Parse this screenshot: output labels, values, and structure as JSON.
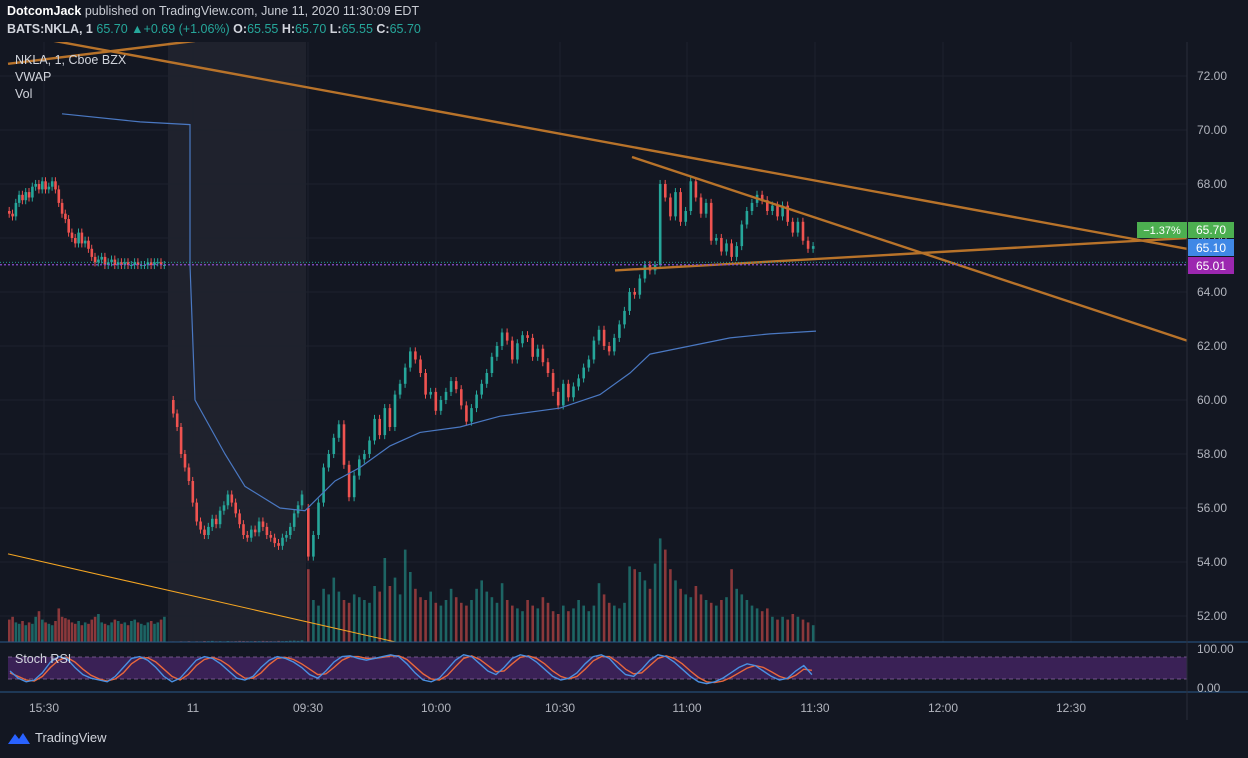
{
  "header": {
    "author": "DotcomJack",
    "published_text": "published on TradingView.com, June 11, 2020 11:30:09 EDT",
    "symbol": "BATS:NKLA, 1",
    "last": "65.70",
    "change": "+0.69 (+1.06%)",
    "o_label": "O:",
    "o": "65.55",
    "h_label": "H:",
    "h": "65.70",
    "l_label": "L:",
    "l": "65.55",
    "c_label": "C:",
    "c": "65.70"
  },
  "legend": {
    "series": "NKLA, 1, Cboe BZX",
    "vwap": "VWAP",
    "vol": "Vol",
    "stoch": "Stoch RSI"
  },
  "colors": {
    "background": "#131722",
    "up": "#26a69a",
    "down": "#ef5350",
    "vwap": "#4a78c2",
    "trendline": "#b8732a",
    "stoch_k": "#4a90e2",
    "stoch_d": "#e8673c",
    "stoch_band": "#5b2a82"
  },
  "price_tags": {
    "percent": "−1.37%",
    "price_green": "65.70",
    "price_blue": "65.10",
    "price_purple": "65.01"
  },
  "footer": {
    "brand": "TradingView"
  },
  "chart_data": {
    "type": "candlestick",
    "title": "NKLA, 1, Cboe BZX",
    "y_ticks": [
      "72.00",
      "70.00",
      "68.00",
      "66.00",
      "64.00",
      "62.00",
      "60.00",
      "58.00",
      "56.00",
      "54.00",
      "52.00"
    ],
    "ylim": [
      51.0,
      73.5
    ],
    "x_ticks": [
      "15:30",
      "11",
      "09:30",
      "10:00",
      "10:30",
      "11:00",
      "11:30",
      "12:00",
      "12:30"
    ],
    "stoch_ticks": [
      "100.00",
      "0.00"
    ],
    "horizontal_levels": {
      "purple_line": 65.01,
      "green_dotted_line": 65.7
    },
    "segments": [
      {
        "name": "prev_close_session",
        "start": 62,
        "n": 48,
        "o": [
          67.0,
          66.9,
          66.8,
          67.3,
          67.6,
          67.4,
          67.7,
          67.5,
          67.9,
          68.0,
          67.8,
          68.1,
          67.8,
          67.9,
          68.1,
          67.8,
          67.3,
          66.9,
          66.7,
          66.2,
          66.0,
          65.8,
          66.2,
          65.8,
          65.9,
          65.6,
          65.3,
          65.1,
          65.2,
          65.3,
          65.0,
          65.1,
          65.2,
          65.0,
          65.1,
          65.0,
          65.1,
          65.0,
          65.0,
          65.1,
          65.0,
          65.0,
          65.0,
          65.1,
          65.0,
          65.1,
          65.1,
          65.0
        ],
        "c": [
          66.9,
          66.8,
          67.3,
          67.6,
          67.4,
          67.7,
          67.5,
          67.9,
          68.0,
          67.8,
          68.1,
          67.8,
          67.9,
          68.1,
          67.8,
          67.3,
          66.9,
          66.7,
          66.2,
          66.0,
          65.8,
          66.2,
          65.8,
          65.9,
          65.6,
          65.3,
          65.1,
          65.2,
          65.3,
          65.0,
          65.1,
          65.2,
          65.0,
          65.1,
          65.0,
          65.1,
          65.0,
          65.0,
          65.1,
          65.0,
          65.0,
          65.0,
          65.1,
          65.0,
          65.1,
          65.1,
          65.0,
          65.0
        ],
        "v": [
          800,
          900,
          700,
          650,
          750,
          600,
          700,
          650,
          900,
          1100,
          800,
          700,
          650,
          600,
          750,
          1200,
          900,
          850,
          800,
          700,
          650,
          750,
          600,
          700,
          650,
          800,
          900,
          1000,
          700,
          650,
          600,
          700,
          800,
          750,
          650,
          700,
          600,
          750,
          800,
          700,
          650,
          600,
          700,
          750,
          650,
          700,
          800,
          900
        ]
      },
      {
        "name": "premarket",
        "start": 22,
        "n": 34,
        "o": [
          60.0,
          59.5,
          59.0,
          58.0,
          57.5,
          57.0,
          56.2,
          55.5,
          55.2,
          55.0,
          55.3,
          55.6,
          55.4,
          55.9,
          56.1,
          56.5,
          56.2,
          55.8,
          55.4,
          55.0,
          54.9,
          55.2,
          55.1,
          55.5,
          55.3,
          55.0,
          54.9,
          54.7,
          54.6,
          54.9,
          55.0,
          55.3,
          55.8,
          56.1
        ],
        "c": [
          59.5,
          59.0,
          58.0,
          57.5,
          57.0,
          56.2,
          55.5,
          55.2,
          55.0,
          55.3,
          55.6,
          55.4,
          55.9,
          56.1,
          56.5,
          56.2,
          55.8,
          55.4,
          55.0,
          54.9,
          55.2,
          55.1,
          55.5,
          55.3,
          55.0,
          54.9,
          54.7,
          54.6,
          54.9,
          55.0,
          55.3,
          55.8,
          56.1,
          56.5
        ],
        "v": [
          20,
          15,
          25,
          20,
          30,
          15,
          25,
          20,
          35,
          30,
          40,
          25,
          30,
          20,
          35,
          25,
          30,
          40,
          35,
          30,
          25,
          35,
          30,
          40,
          35,
          30,
          25,
          40,
          30,
          35,
          45,
          50,
          40,
          60
        ]
      },
      {
        "name": "regular_session",
        "start": 56,
        "n": 100,
        "o": [
          56.0,
          54.2,
          55.0,
          56.2,
          57.5,
          58.0,
          58.6,
          59.1,
          57.6,
          56.4,
          57.2,
          57.8,
          58.0,
          58.5,
          59.3,
          58.7,
          59.7,
          59.0,
          60.2,
          60.6,
          61.2,
          61.8,
          61.5,
          61.0,
          60.2,
          60.3,
          59.6,
          60.0,
          60.3,
          60.7,
          60.4,
          59.8,
          59.2,
          59.7,
          60.2,
          60.6,
          61.0,
          61.6,
          62.0,
          62.5,
          62.2,
          61.5,
          62.1,
          62.4,
          62.3,
          61.6,
          61.9,
          61.4,
          61.0,
          60.3,
          59.8,
          60.6,
          60.1,
          60.5,
          60.8,
          61.2,
          61.5,
          62.2,
          62.6,
          62.0,
          61.8,
          62.3,
          62.8,
          63.3,
          64.0,
          63.9,
          64.5,
          65.0,
          64.8,
          65.0,
          68.0,
          67.5,
          66.8,
          67.7,
          66.6,
          67.0,
          68.1,
          67.5,
          66.9,
          67.3,
          65.9,
          66.0,
          65.5,
          65.8,
          65.3,
          65.7,
          66.5,
          67.0,
          67.3,
          67.6,
          67.4,
          67.0,
          67.2,
          66.8,
          67.2,
          66.6,
          66.2,
          66.6,
          65.9,
          65.6
        ],
        "c": [
          54.2,
          55.0,
          56.2,
          57.5,
          58.0,
          58.6,
          59.1,
          57.6,
          56.4,
          57.2,
          57.8,
          58.0,
          58.5,
          59.3,
          58.7,
          59.7,
          59.0,
          60.2,
          60.6,
          61.2,
          61.8,
          61.5,
          61.0,
          60.2,
          60.3,
          59.6,
          60.0,
          60.3,
          60.7,
          60.4,
          59.8,
          59.2,
          59.7,
          60.2,
          60.6,
          61.0,
          61.6,
          62.0,
          62.5,
          62.2,
          61.5,
          62.1,
          62.4,
          62.3,
          61.6,
          61.9,
          61.4,
          61.0,
          60.3,
          59.8,
          60.6,
          60.1,
          60.5,
          60.8,
          61.2,
          61.5,
          62.2,
          62.6,
          62.0,
          61.8,
          62.3,
          62.8,
          63.3,
          64.0,
          63.9,
          64.5,
          65.0,
          64.8,
          65.0,
          68.0,
          67.5,
          66.8,
          67.7,
          66.6,
          67.0,
          68.1,
          67.5,
          66.9,
          67.3,
          65.9,
          66.0,
          65.5,
          65.8,
          65.3,
          65.7,
          66.5,
          67.0,
          67.3,
          67.6,
          67.4,
          67.0,
          67.2,
          66.8,
          67.2,
          66.6,
          66.2,
          66.6,
          65.9,
          65.6,
          65.7
        ],
        "v": [
          2600,
          1500,
          1300,
          1900,
          1700,
          2300,
          1800,
          1500,
          1400,
          1700,
          1600,
          1500,
          1400,
          2000,
          1800,
          3000,
          2000,
          2300,
          1700,
          3300,
          2500,
          1900,
          1600,
          1500,
          1800,
          1400,
          1300,
          1500,
          1900,
          1600,
          1400,
          1300,
          1500,
          1900,
          2200,
          1800,
          1600,
          1400,
          2100,
          1500,
          1300,
          1200,
          1100,
          1500,
          1300,
          1200,
          1600,
          1400,
          1100,
          1000,
          1300,
          1100,
          1200,
          1500,
          1300,
          1100,
          1300,
          2100,
          1700,
          1400,
          1300,
          1200,
          1400,
          2700,
          2600,
          2500,
          2200,
          1900,
          2800,
          3700,
          3300,
          2600,
          2200,
          1900,
          1700,
          1600,
          2000,
          1700,
          1500,
          1400,
          1300,
          1500,
          1600,
          2600,
          1900,
          1700,
          1500,
          1300,
          1200,
          1100,
          1200,
          900,
          800,
          900,
          800,
          1000,
          900,
          800,
          700,
          600
        ]
      }
    ],
    "vwap": [
      {
        "x": 62,
        "y": 70.6
      },
      {
        "x": 140,
        "y": 70.3
      },
      {
        "x": 190,
        "y": 70.2
      },
      {
        "x": 190,
        "y": 65.0
      },
      {
        "x": 195,
        "y": 60.0
      },
      {
        "x": 210,
        "y": 59.0
      },
      {
        "x": 225,
        "y": 58.0
      },
      {
        "x": 245,
        "y": 56.8
      },
      {
        "x": 280,
        "y": 56.0
      },
      {
        "x": 305,
        "y": 55.9
      },
      {
        "x": 335,
        "y": 57.0
      },
      {
        "x": 360,
        "y": 57.5
      },
      {
        "x": 390,
        "y": 58.3
      },
      {
        "x": 420,
        "y": 58.8
      },
      {
        "x": 460,
        "y": 59.0
      },
      {
        "x": 500,
        "y": 59.4
      },
      {
        "x": 560,
        "y": 59.7
      },
      {
        "x": 600,
        "y": 60.2
      },
      {
        "x": 630,
        "y": 61.0
      },
      {
        "x": 650,
        "y": 61.7
      },
      {
        "x": 690,
        "y": 62.0
      },
      {
        "x": 730,
        "y": 62.3
      },
      {
        "x": 770,
        "y": 62.45
      },
      {
        "x": 816,
        "y": 62.55
      }
    ],
    "trendlines": [
      {
        "x1": 10,
        "y1": 73.6,
        "x2": 1187,
        "y2": 65.6
      },
      {
        "x1": 8,
        "y1": 72.45,
        "x2": 195,
        "y2": 73.3
      },
      {
        "x1": 632,
        "y1": 69.0,
        "x2": 1187,
        "y2": 62.2
      },
      {
        "x1": 615,
        "y1": 64.8,
        "x2": 1187,
        "y2": 66.0
      },
      {
        "x1": 8,
        "y1": 54.3,
        "x2": 400,
        "y2": 51.0
      }
    ],
    "stoch_rsi": {
      "k": [
        50,
        30,
        20,
        25,
        45,
        75,
        90,
        85,
        60,
        40,
        30,
        25,
        20,
        35,
        60,
        85,
        90,
        80,
        60,
        35,
        20,
        30,
        55,
        80,
        90,
        85,
        70,
        50,
        30,
        25,
        35,
        60,
        80,
        90,
        85,
        75,
        60,
        40,
        30,
        50,
        75,
        90,
        92,
        85,
        80,
        85,
        90,
        95,
        90,
        70,
        45,
        25,
        20,
        30,
        55,
        80,
        95,
        90,
        70,
        50,
        40,
        60,
        85,
        95,
        90,
        75,
        55,
        35,
        25,
        30,
        45,
        70,
        90,
        95,
        85,
        60,
        40,
        35,
        55,
        80,
        95,
        90,
        75,
        55,
        35,
        20,
        15,
        20,
        30,
        45,
        60,
        70,
        65,
        50,
        35,
        25,
        30,
        50,
        65,
        40
      ],
      "d": [
        45,
        35,
        25,
        22,
        35,
        60,
        80,
        88,
        75,
        55,
        38,
        28,
        22,
        28,
        45,
        70,
        85,
        87,
        75,
        55,
        35,
        25,
        40,
        65,
        82,
        88,
        80,
        65,
        45,
        30,
        30,
        45,
        68,
        85,
        88,
        82,
        70,
        55,
        40,
        42,
        60,
        80,
        90,
        90,
        85,
        85,
        88,
        92,
        92,
        82,
        62,
        42,
        28,
        25,
        38,
        62,
        85,
        92,
        82,
        65,
        48,
        50,
        70,
        88,
        92,
        85,
        70,
        50,
        35,
        28,
        35,
        55,
        78,
        90,
        90,
        75,
        55,
        42,
        45,
        65,
        85,
        92,
        85,
        70,
        50,
        32,
        20,
        18,
        22,
        32,
        45,
        58,
        65,
        60,
        48,
        35,
        28,
        38,
        55,
        52
      ]
    }
  }
}
